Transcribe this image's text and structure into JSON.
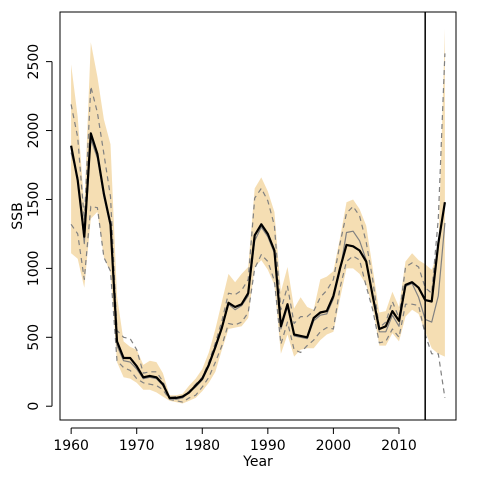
{
  "chart_data": {
    "type": "line",
    "title": "",
    "xlabel": "Year",
    "ylabel": "SSB",
    "xlim": [
      1958.3,
      2018.7
    ],
    "ylim": [
      -100,
      2860
    ],
    "x_ticks": [
      1960,
      1970,
      1980,
      1990,
      2000,
      2010
    ],
    "y_ticks": [
      0,
      500,
      1000,
      1500,
      2000,
      2500
    ],
    "grid": false,
    "legend": "none",
    "vline": 2014,
    "colors": {
      "band": "#f5deb3",
      "main": "#000000",
      "secondary": "#808080",
      "dashed": "#808080",
      "vline": "#000000"
    },
    "x": [
      1960,
      1961,
      1962,
      1963,
      1964,
      1965,
      1966,
      1967,
      1968,
      1969,
      1970,
      1971,
      1972,
      1973,
      1974,
      1975,
      1976,
      1977,
      1978,
      1979,
      1980,
      1981,
      1982,
      1983,
      1984,
      1985,
      1986,
      1987,
      1988,
      1989,
      1990,
      1991,
      1992,
      1993,
      1994,
      1995,
      1996,
      1997,
      1998,
      1999,
      2000,
      2001,
      2002,
      2003,
      2004,
      2005,
      2006,
      2007,
      2008,
      2009,
      2010,
      2011,
      2012,
      2013,
      2014,
      2015,
      2016,
      2017
    ],
    "band_upper": [
      2480,
      2100,
      1450,
      2640,
      2390,
      2080,
      1900,
      800,
      470,
      430,
      410,
      300,
      330,
      320,
      240,
      80,
      80,
      90,
      150,
      200,
      270,
      390,
      560,
      760,
      960,
      900,
      960,
      1010,
      1580,
      1660,
      1560,
      1410,
      830,
      1010,
      710,
      790,
      720,
      700,
      920,
      940,
      980,
      1220,
      1480,
      1500,
      1430,
      1310,
      1000,
      680,
      690,
      830,
      720,
      1050,
      1110,
      1060,
      1030,
      990,
      1120,
      2740
    ],
    "band_lower": [
      1110,
      1070,
      860,
      1360,
      1410,
      1080,
      970,
      320,
      210,
      200,
      170,
      120,
      120,
      100,
      70,
      40,
      30,
      20,
      40,
      60,
      110,
      170,
      250,
      410,
      560,
      570,
      580,
      640,
      1010,
      1060,
      990,
      880,
      380,
      520,
      360,
      410,
      420,
      420,
      480,
      520,
      540,
      780,
      1000,
      1000,
      960,
      880,
      720,
      440,
      440,
      530,
      470,
      650,
      700,
      670,
      540,
      420,
      380,
      360
    ],
    "series": [
      {
        "name": "",
        "style": "solid-thick",
        "values": [
          1890,
          1640,
          1230,
          1980,
          1830,
          1540,
          1320,
          470,
          350,
          350,
          290,
          210,
          220,
          210,
          160,
          60,
          60,
          70,
          100,
          150,
          200,
          300,
          430,
          570,
          750,
          720,
          740,
          820,
          1240,
          1320,
          1250,
          1130,
          580,
          740,
          520,
          510,
          500,
          640,
          680,
          690,
          800,
          1000,
          1170,
          1160,
          1130,
          1050,
          800,
          560,
          580,
          690,
          620,
          880,
          900,
          860,
          770,
          760,
          1180,
          1480
        ]
      },
      {
        "name": "",
        "style": "solid-thin",
        "values": [
          1840,
          1660,
          1180,
          1940,
          1800,
          1520,
          1300,
          440,
          330,
          320,
          270,
          200,
          210,
          200,
          150,
          60,
          50,
          60,
          100,
          140,
          190,
          290,
          420,
          560,
          740,
          700,
          730,
          800,
          1200,
          1300,
          1230,
          1110,
          560,
          720,
          510,
          500,
          490,
          620,
          660,
          670,
          780,
          980,
          1260,
          1270,
          1200,
          1060,
          790,
          540,
          540,
          660,
          580,
          870,
          890,
          790,
          630,
          610,
          800,
          1330
        ]
      },
      {
        "name": "",
        "style": "dashed",
        "values": [
          2190,
          1950,
          1350,
          2320,
          2130,
          1830,
          1520,
          550,
          500,
          490,
          410,
          240,
          250,
          250,
          180,
          60,
          70,
          70,
          110,
          160,
          210,
          320,
          460,
          620,
          820,
          810,
          840,
          920,
          1510,
          1580,
          1490,
          1310,
          700,
          870,
          600,
          650,
          650,
          690,
          790,
          840,
          920,
          1180,
          1400,
          1450,
          1380,
          1190,
          920,
          570,
          610,
          760,
          640,
          1010,
          1040,
          1010,
          860,
          820,
          1360,
          2560
        ]
      },
      {
        "name": "",
        "style": "dashed",
        "values": [
          1320,
          1250,
          920,
          1450,
          1440,
          1080,
          980,
          330,
          280,
          260,
          200,
          170,
          160,
          150,
          120,
          50,
          40,
          30,
          60,
          80,
          140,
          210,
          320,
          440,
          600,
          590,
          610,
          680,
          1000,
          1100,
          1050,
          910,
          450,
          610,
          410,
          390,
          440,
          480,
          540,
          570,
          560,
          860,
          1050,
          1090,
          1060,
          870,
          700,
          460,
          470,
          560,
          500,
          740,
          740,
          730,
          520,
          380,
          380,
          60
        ]
      }
    ]
  }
}
